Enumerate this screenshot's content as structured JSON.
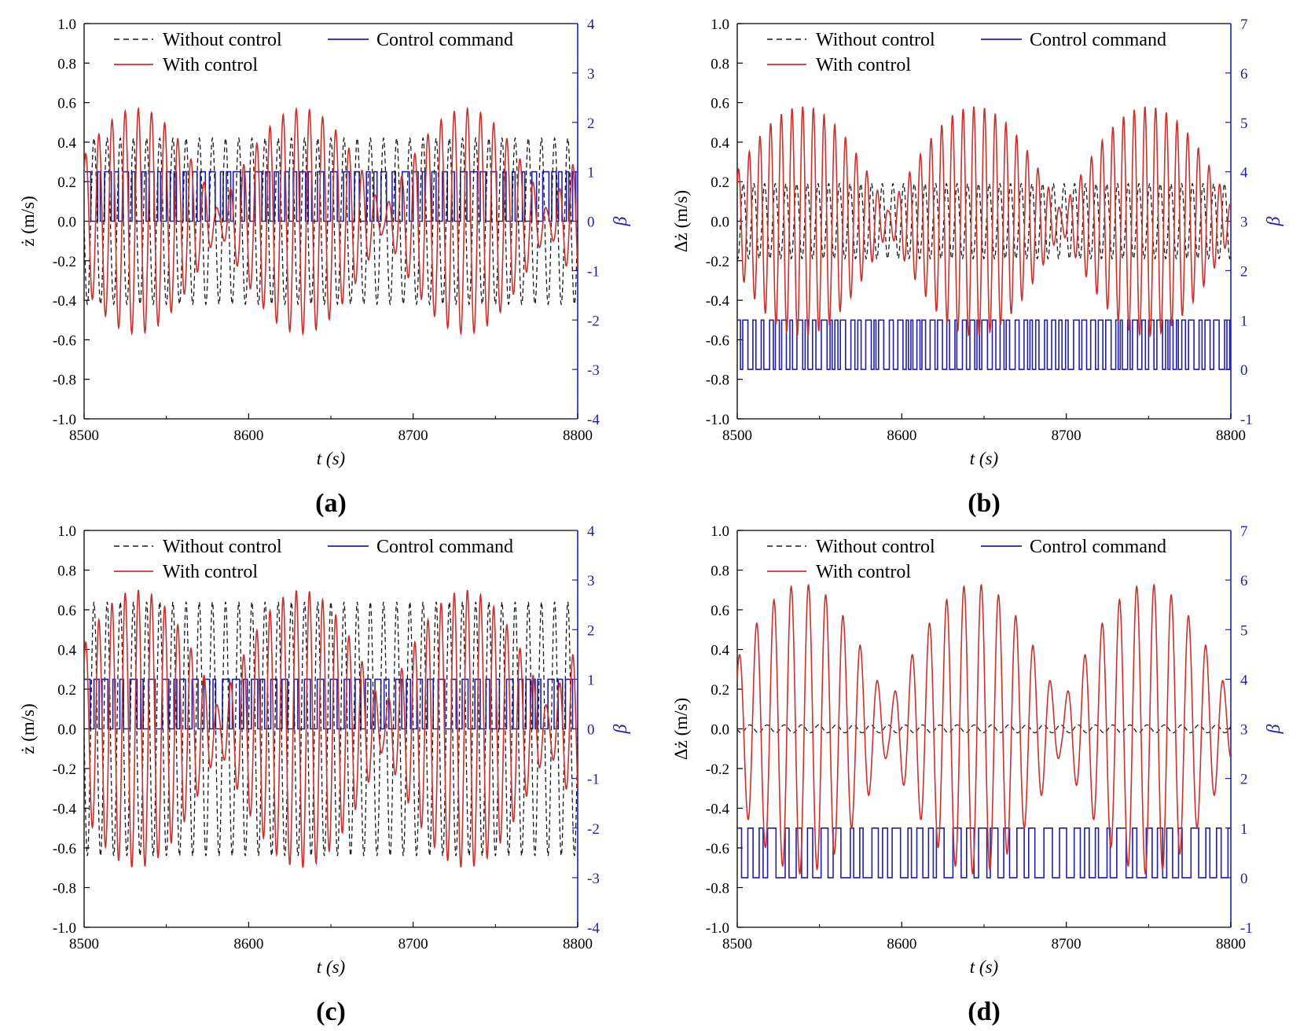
{
  "figure": {
    "colors": {
      "without_control": "#1a1a1a",
      "with_control": "#c8322f",
      "control_command": "#1f1fa8",
      "axis": "#000000",
      "right_axis": "#1f1fa8"
    }
  },
  "chart_data": [
    {
      "type": "line",
      "panel": "(a)",
      "xlabel": "t (s)",
      "ylabel": "ż (m/s)",
      "ylabel_right": "β",
      "xlim": [
        8500,
        8800
      ],
      "ylim": [
        -1.0,
        1.0
      ],
      "ylim_right": [
        -4,
        4
      ],
      "x_ticks": [
        "8500",
        "8600",
        "8700",
        "8800"
      ],
      "y_ticks": [
        "-1.0",
        "-0.8",
        "-0.6",
        "-0.4",
        "-0.2",
        "0.0",
        "0.2",
        "0.4",
        "0.6",
        "0.8",
        "1.0"
      ],
      "y_ticks_right": [
        "-4",
        "-3",
        "-2",
        "-1",
        "0",
        "1",
        "2",
        "3",
        "4"
      ],
      "legend": [
        "Without control",
        "With control",
        "Control command"
      ],
      "legend_placement": "top",
      "grid": false,
      "series": [
        {
          "name": "Without control",
          "style": "dashed",
          "axis": "left",
          "amplitude": 0.42,
          "period_s": 8.0
        },
        {
          "name": "With control",
          "style": "solid",
          "axis": "left",
          "amplitude_range": [
            0.05,
            0.57
          ],
          "period_s": 8.0,
          "beat_period_s": 100
        },
        {
          "name": "Control command",
          "style": "step",
          "axis": "right",
          "values": [
            0,
            1
          ]
        }
      ]
    },
    {
      "type": "line",
      "panel": "(b)",
      "xlabel": "t (s)",
      "ylabel": "Δż (m/s)",
      "ylabel_right": "β",
      "xlim": [
        8500,
        8800
      ],
      "ylim": [
        -1.0,
        1.0
      ],
      "ylim_right": [
        -1,
        7
      ],
      "x_ticks": [
        "8500",
        "8600",
        "8700",
        "8800"
      ],
      "y_ticks": [
        "-1.0",
        "-0.8",
        "-0.6",
        "-0.4",
        "-0.2",
        "0.0",
        "0.2",
        "0.4",
        "0.6",
        "0.8",
        "1.0"
      ],
      "y_ticks_right": [
        "-1",
        "0",
        "1",
        "2",
        "3",
        "4",
        "5",
        "6",
        "7"
      ],
      "legend": [
        "Without control",
        "With control",
        "Control command"
      ],
      "legend_placement": "top",
      "grid": false,
      "series": [
        {
          "name": "Without control",
          "style": "dashed",
          "axis": "left",
          "amplitude": 0.19,
          "period_s": 6.5
        },
        {
          "name": "With control",
          "style": "solid",
          "axis": "left",
          "amplitude_range": [
            0.05,
            0.58
          ],
          "period_s": 6.5,
          "beat_period_s": 105
        },
        {
          "name": "Control command",
          "style": "step",
          "axis": "right",
          "values": [
            0,
            1
          ]
        }
      ]
    },
    {
      "type": "line",
      "panel": "(c)",
      "xlabel": "t (s)",
      "ylabel": "ż (m/s)",
      "ylabel_right": "β",
      "xlim": [
        8500,
        8800
      ],
      "ylim": [
        -1.0,
        1.0
      ],
      "ylim_right": [
        -4,
        4
      ],
      "x_ticks": [
        "8500",
        "8600",
        "8700",
        "8800"
      ],
      "y_ticks": [
        "-1.0",
        "-0.8",
        "-0.6",
        "-0.4",
        "-0.2",
        "0.0",
        "0.2",
        "0.4",
        "0.6",
        "0.8",
        "1.0"
      ],
      "y_ticks_right": [
        "-4",
        "-3",
        "-2",
        "-1",
        "0",
        "1",
        "2",
        "3",
        "4"
      ],
      "legend": [
        "Without control",
        "With control",
        "Control command"
      ],
      "legend_placement": "top",
      "grid": false,
      "series": [
        {
          "name": "Without control",
          "style": "dashed",
          "axis": "left",
          "amplitude": 0.64,
          "period_s": 8.0
        },
        {
          "name": "With control",
          "style": "solid",
          "axis": "left",
          "amplitude_range": [
            0.1,
            0.7
          ],
          "period_s": 8.0,
          "beat_period_s": 100
        },
        {
          "name": "Control command",
          "style": "step",
          "axis": "right",
          "values": [
            0,
            1
          ]
        }
      ]
    },
    {
      "type": "line",
      "panel": "(d)",
      "xlabel": "t (s)",
      "ylabel": "Δż (m/s)",
      "ylabel_right": "β",
      "xlim": [
        8500,
        8800
      ],
      "ylim": [
        -1.0,
        1.0
      ],
      "ylim_right": [
        -1,
        7
      ],
      "x_ticks": [
        "8500",
        "8600",
        "8700",
        "8800"
      ],
      "y_ticks": [
        "-1.0",
        "-0.8",
        "-0.6",
        "-0.4",
        "-0.2",
        "0.0",
        "0.2",
        "0.4",
        "0.6",
        "0.8",
        "1.0"
      ],
      "y_ticks_right": [
        "-1",
        "0",
        "1",
        "2",
        "3",
        "4",
        "5",
        "6",
        "7"
      ],
      "legend": [
        "Without control",
        "With control",
        "Control command"
      ],
      "legend_placement": "top",
      "grid": false,
      "series": [
        {
          "name": "Without control",
          "style": "dashed",
          "axis": "left",
          "amplitude": 0.02,
          "period_s": 10.5
        },
        {
          "name": "With control",
          "style": "solid",
          "axis": "left",
          "amplitude_range": [
            0.12,
            0.73
          ],
          "period_s": 10.5,
          "beat_period_s": 105
        },
        {
          "name": "Control command",
          "style": "step",
          "axis": "right",
          "values": [
            0,
            1
          ]
        }
      ]
    }
  ]
}
